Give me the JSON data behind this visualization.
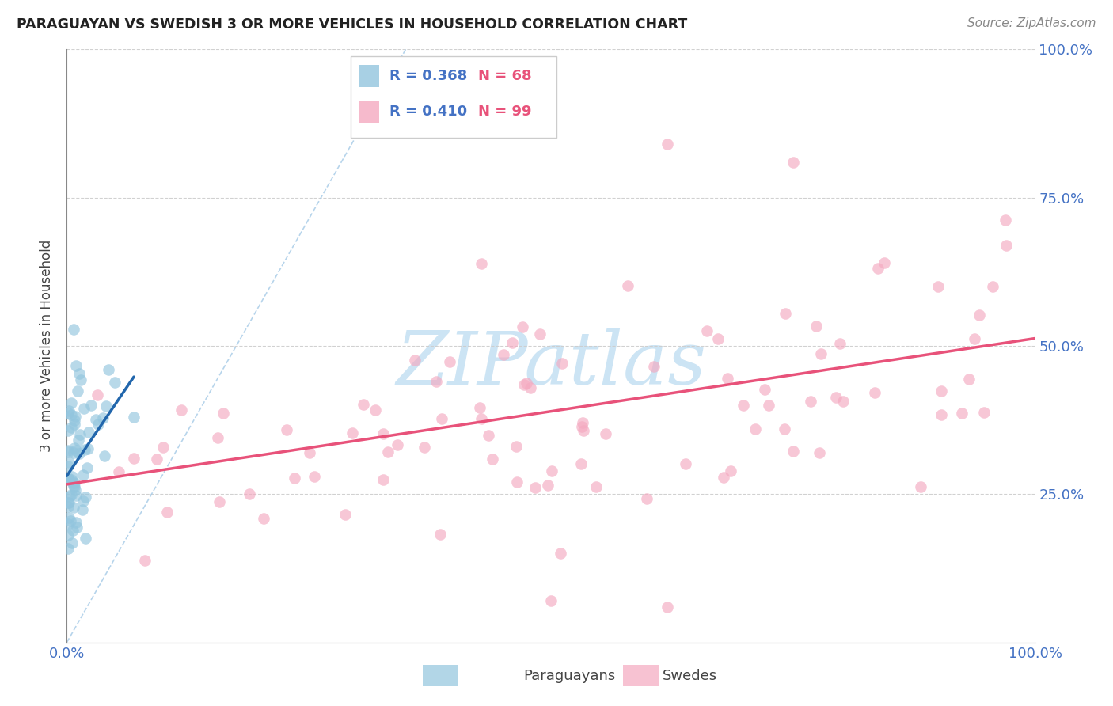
{
  "title": "PARAGUAYAN VS SWEDISH 3 OR MORE VEHICLES IN HOUSEHOLD CORRELATION CHART",
  "source": "Source: ZipAtlas.com",
  "ylabel": "3 or more Vehicles in Household",
  "paraguayan_color": "#92c5de",
  "swedish_color": "#f4a9c0",
  "paraguayan_trend_color": "#2166ac",
  "swedish_trend_color": "#e8527a",
  "diagonal_color": "#aacde8",
  "watermark_text": "ZIPatlas",
  "watermark_color": "#cce4f4",
  "legend_r1_color": "#4472c4",
  "legend_n1_color": "#e8527a",
  "title_color": "#222222",
  "source_color": "#888888",
  "ylabel_color": "#444444",
  "tick_color": "#4472c4",
  "grid_color": "#cccccc",
  "axis_color": "#888888",
  "para_seed": 12,
  "swed_seed": 7
}
